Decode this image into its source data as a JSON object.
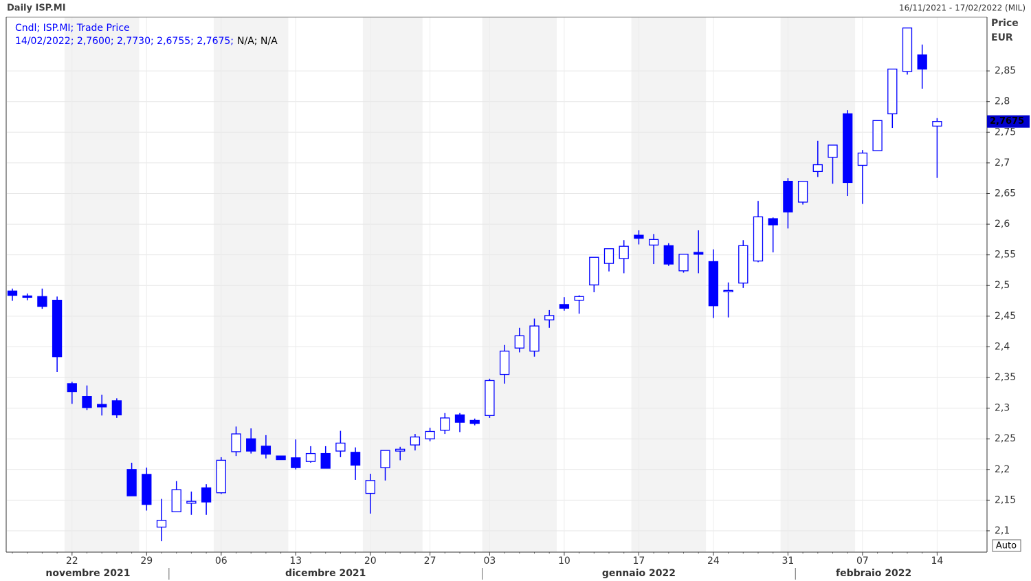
{
  "header": {
    "title": "Daily ISP.MI",
    "range": "16/11/2021 - 17/02/2022 (MIL)"
  },
  "chart_data": {
    "type": "candlestick",
    "legend": {
      "title": "Cndl; ISP.MI; Trade Price",
      "values": "14/02/2022; 2,7600; 2,7730; 2,6755; 2,7675;",
      "extra": "N/A; N/A"
    },
    "y_axis_label": "Price",
    "y_axis_unit": "EUR",
    "scale_button": "Auto",
    "x": [
      "16/11/2021",
      "17/11/2021",
      "18/11/2021",
      "19/11/2021",
      "22/11/2021",
      "23/11/2021",
      "24/11/2021",
      "25/11/2021",
      "26/11/2021",
      "29/11/2021",
      "30/11/2021",
      "01/12/2021",
      "02/12/2021",
      "03/12/2021",
      "06/12/2021",
      "07/12/2021",
      "08/12/2021",
      "09/12/2021",
      "10/12/2021",
      "13/12/2021",
      "14/12/2021",
      "15/12/2021",
      "16/12/2021",
      "17/12/2021",
      "20/12/2021",
      "21/12/2021",
      "22/12/2021",
      "23/12/2021",
      "27/12/2021",
      "28/12/2021",
      "29/12/2021",
      "30/12/2021",
      "03/01/2022",
      "04/01/2022",
      "05/01/2022",
      "06/01/2022",
      "07/01/2022",
      "10/01/2022",
      "11/01/2022",
      "12/01/2022",
      "13/01/2022",
      "14/01/2022",
      "17/01/2022",
      "18/01/2022",
      "19/01/2022",
      "20/01/2022",
      "21/01/2022",
      "24/01/2022",
      "25/01/2022",
      "26/01/2022",
      "27/01/2022",
      "28/01/2022",
      "31/01/2022",
      "01/02/2022",
      "02/02/2022",
      "03/02/2022",
      "04/02/2022",
      "07/02/2022",
      "08/02/2022",
      "09/02/2022",
      "10/02/2022",
      "11/02/2022",
      "14/02/2022"
    ],
    "series": [
      {
        "color": "#0000ff",
        "open": [
          2.491,
          2.483,
          2.482,
          2.476,
          2.34,
          2.319,
          2.306,
          2.312,
          2.2,
          2.192,
          2.106,
          2.131,
          2.145,
          2.17,
          2.162,
          2.229,
          2.25,
          2.238,
          2.222,
          2.219,
          2.213,
          2.226,
          2.23,
          2.228,
          2.161,
          2.203,
          2.23,
          2.24,
          2.25,
          2.264,
          2.289,
          2.28,
          2.288,
          2.355,
          2.398,
          2.393,
          2.444,
          2.469,
          2.476,
          2.501,
          2.536,
          2.544,
          2.582,
          2.566,
          2.565,
          2.524,
          2.554,
          2.539,
          2.49,
          2.504,
          2.54,
          2.609,
          2.67,
          2.636,
          2.686,
          2.709,
          2.78,
          2.696,
          2.72,
          2.78,
          2.849,
          2.876,
          2.76
        ],
        "high": [
          2.495,
          2.487,
          2.495,
          2.482,
          2.343,
          2.337,
          2.322,
          2.316,
          2.211,
          2.203,
          2.152,
          2.181,
          2.164,
          2.176,
          2.22,
          2.27,
          2.267,
          2.256,
          2.222,
          2.249,
          2.238,
          2.238,
          2.263,
          2.236,
          2.193,
          2.231,
          2.237,
          2.258,
          2.268,
          2.292,
          2.292,
          2.283,
          2.348,
          2.403,
          2.431,
          2.446,
          2.46,
          2.481,
          2.484,
          2.546,
          2.56,
          2.574,
          2.59,
          2.584,
          2.569,
          2.551,
          2.59,
          2.559,
          2.505,
          2.574,
          2.638,
          2.611,
          2.675,
          2.67,
          2.736,
          2.729,
          2.786,
          2.721,
          2.769,
          2.853,
          2.92,
          2.893,
          2.773
        ],
        "low": [
          2.475,
          2.476,
          2.462,
          2.359,
          2.307,
          2.297,
          2.288,
          2.284,
          2.157,
          2.133,
          2.083,
          2.131,
          2.126,
          2.126,
          2.16,
          2.222,
          2.226,
          2.218,
          2.216,
          2.2,
          2.211,
          2.202,
          2.22,
          2.183,
          2.128,
          2.182,
          2.215,
          2.231,
          2.246,
          2.258,
          2.261,
          2.272,
          2.284,
          2.34,
          2.391,
          2.384,
          2.431,
          2.459,
          2.454,
          2.489,
          2.523,
          2.52,
          2.567,
          2.535,
          2.532,
          2.521,
          2.52,
          2.447,
          2.448,
          2.496,
          2.538,
          2.554,
          2.593,
          2.632,
          2.677,
          2.666,
          2.646,
          2.633,
          2.72,
          2.757,
          2.844,
          2.821,
          2.6755
        ],
        "close": [
          2.484,
          2.481,
          2.466,
          2.384,
          2.327,
          2.301,
          2.302,
          2.289,
          2.157,
          2.143,
          2.117,
          2.167,
          2.148,
          2.147,
          2.215,
          2.258,
          2.23,
          2.225,
          2.216,
          2.203,
          2.226,
          2.202,
          2.243,
          2.207,
          2.182,
          2.231,
          2.233,
          2.253,
          2.262,
          2.284,
          2.277,
          2.275,
          2.345,
          2.393,
          2.418,
          2.434,
          2.451,
          2.463,
          2.482,
          2.546,
          2.56,
          2.564,
          2.577,
          2.575,
          2.535,
          2.551,
          2.551,
          2.467,
          2.492,
          2.565,
          2.612,
          2.599,
          2.62,
          2.67,
          2.697,
          2.729,
          2.668,
          2.716,
          2.769,
          2.853,
          2.92,
          2.853,
          2.7675
        ]
      }
    ],
    "last_label": {
      "value": 2.7675,
      "label": "2,7675"
    },
    "ylim": [
      2.0652,
      2.9376
    ],
    "yticks": [
      {
        "value": 2.1,
        "label": "2,1"
      },
      {
        "value": 2.15,
        "label": "2,15"
      },
      {
        "value": 2.2,
        "label": "2,2"
      },
      {
        "value": 2.25,
        "label": "2,25"
      },
      {
        "value": 2.3,
        "label": "2,3"
      },
      {
        "value": 2.35,
        "label": "2,35"
      },
      {
        "value": 2.4,
        "label": "2,4"
      },
      {
        "value": 2.45,
        "label": "2,45"
      },
      {
        "value": 2.5,
        "label": "2,5"
      },
      {
        "value": 2.55,
        "label": "2,55"
      },
      {
        "value": 2.6,
        "label": "2,6"
      },
      {
        "value": 2.65,
        "label": "2,65"
      },
      {
        "value": 2.7,
        "label": "2,7"
      },
      {
        "value": 2.75,
        "label": "2,75"
      },
      {
        "value": 2.8,
        "label": "2,8"
      },
      {
        "value": 2.85,
        "label": "2,85"
      }
    ],
    "xticks": [
      {
        "value": "22/11/2021",
        "label": "22"
      },
      {
        "value": "29/11/2021",
        "label": "29"
      },
      {
        "value": "06/12/2021",
        "label": "06"
      },
      {
        "value": "13/12/2021",
        "label": "13"
      },
      {
        "value": "20/12/2021",
        "label": "20"
      },
      {
        "value": "27/12/2021",
        "label": "27"
      },
      {
        "value": "03/01/2022",
        "label": "03"
      },
      {
        "value": "10/01/2022",
        "label": "10"
      },
      {
        "value": "17/01/2022",
        "label": "17"
      },
      {
        "value": "24/01/2022",
        "label": "24"
      },
      {
        "value": "31/01/2022",
        "label": "31"
      },
      {
        "value": "07/02/2022",
        "label": "07"
      },
      {
        "value": "14/02/2022",
        "label": "14"
      }
    ],
    "months": [
      {
        "value": "11/2021",
        "label": "novembre 2021"
      },
      {
        "value": "12/2021",
        "label": "dicembre 2021"
      },
      {
        "value": "01/2022",
        "label": "gennaio 2022"
      },
      {
        "value": "02/2022",
        "label": "febbraio 2022"
      }
    ],
    "grid": true
  }
}
